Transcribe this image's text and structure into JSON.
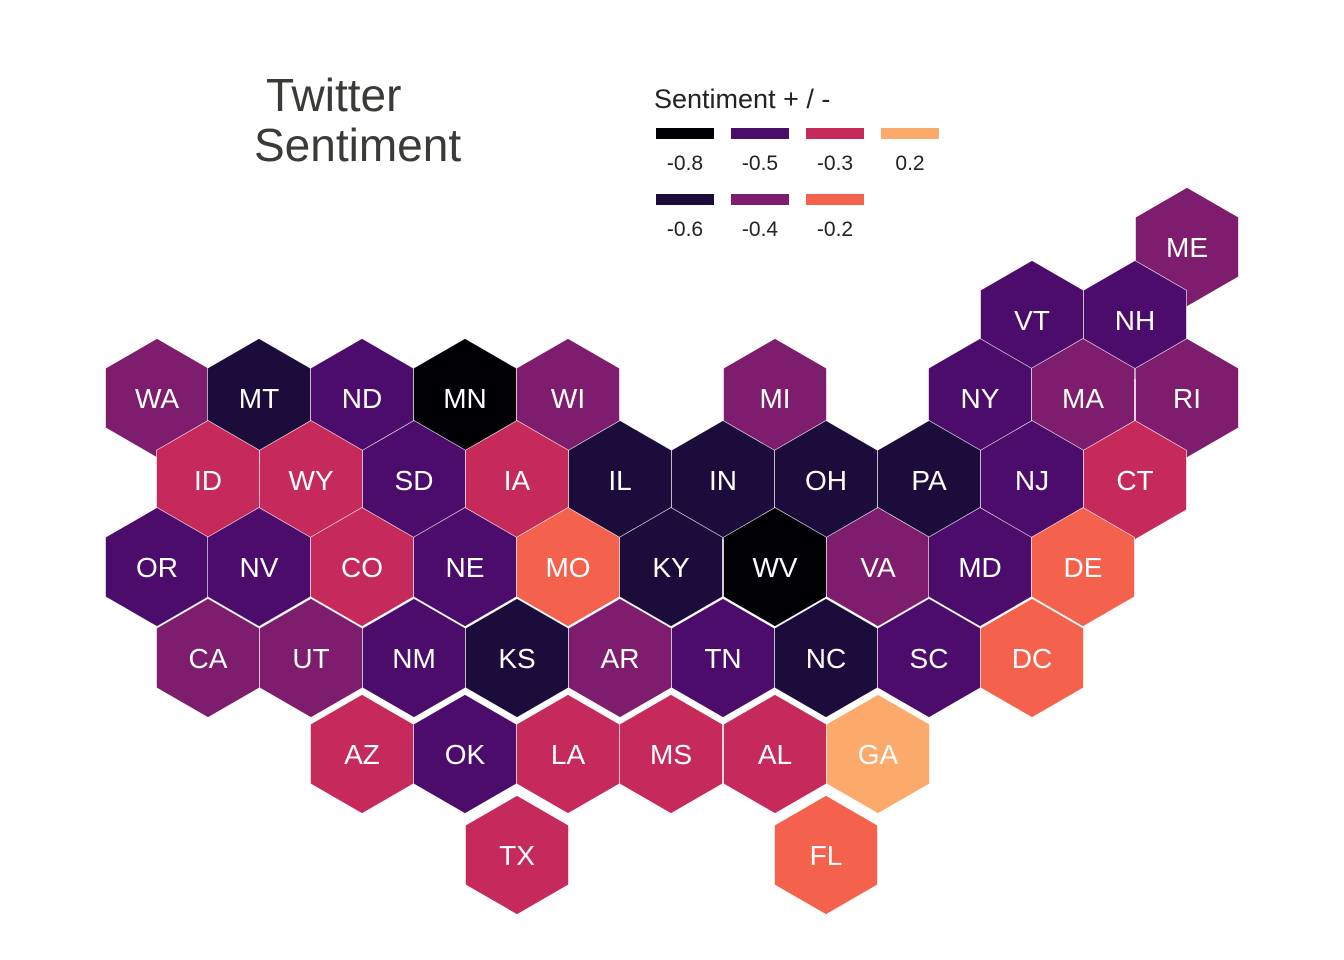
{
  "title": {
    "line1": "Twitter",
    "line2": "Sentiment"
  },
  "legend": {
    "title": "Sentiment + / -",
    "items": [
      {
        "label": "-0.8",
        "color": "#000004"
      },
      {
        "label": "-0.6",
        "color": "#1c0c3b"
      },
      {
        "label": "-0.5",
        "color": "#4b0c6b"
      },
      {
        "label": "-0.4",
        "color": "#7e1c6e"
      },
      {
        "label": "-0.3",
        "color": "#c52a5a"
      },
      {
        "label": "-0.2",
        "color": "#f4624e"
      },
      {
        "label": "0.2",
        "color": "#fca96c"
      }
    ]
  },
  "chart_data": {
    "type": "hex-cartogram",
    "title": "Twitter Sentiment",
    "legend_title": "Sentiment + / -",
    "states": [
      {
        "abbr": "ME",
        "value": -0.4
      },
      {
        "abbr": "VT",
        "value": -0.5
      },
      {
        "abbr": "NH",
        "value": -0.5
      },
      {
        "abbr": "WA",
        "value": -0.4
      },
      {
        "abbr": "MT",
        "value": -0.6
      },
      {
        "abbr": "ND",
        "value": -0.5
      },
      {
        "abbr": "MN",
        "value": -0.8
      },
      {
        "abbr": "WI",
        "value": -0.4
      },
      {
        "abbr": "MI",
        "value": -0.4
      },
      {
        "abbr": "NY",
        "value": -0.5
      },
      {
        "abbr": "MA",
        "value": -0.4
      },
      {
        "abbr": "RI",
        "value": -0.4
      },
      {
        "abbr": "ID",
        "value": -0.3
      },
      {
        "abbr": "WY",
        "value": -0.3
      },
      {
        "abbr": "SD",
        "value": -0.5
      },
      {
        "abbr": "IA",
        "value": -0.3
      },
      {
        "abbr": "IL",
        "value": -0.6
      },
      {
        "abbr": "IN",
        "value": -0.6
      },
      {
        "abbr": "OH",
        "value": -0.6
      },
      {
        "abbr": "PA",
        "value": -0.6
      },
      {
        "abbr": "NJ",
        "value": -0.5
      },
      {
        "abbr": "CT",
        "value": -0.3
      },
      {
        "abbr": "OR",
        "value": -0.5
      },
      {
        "abbr": "NV",
        "value": -0.5
      },
      {
        "abbr": "CO",
        "value": -0.3
      },
      {
        "abbr": "NE",
        "value": -0.5
      },
      {
        "abbr": "MO",
        "value": -0.2
      },
      {
        "abbr": "KY",
        "value": -0.6
      },
      {
        "abbr": "WV",
        "value": -0.8
      },
      {
        "abbr": "VA",
        "value": -0.4
      },
      {
        "abbr": "MD",
        "value": -0.5
      },
      {
        "abbr": "DE",
        "value": -0.2
      },
      {
        "abbr": "CA",
        "value": -0.4
      },
      {
        "abbr": "UT",
        "value": -0.4
      },
      {
        "abbr": "NM",
        "value": -0.5
      },
      {
        "abbr": "KS",
        "value": -0.6
      },
      {
        "abbr": "AR",
        "value": -0.4
      },
      {
        "abbr": "TN",
        "value": -0.5
      },
      {
        "abbr": "NC",
        "value": -0.6
      },
      {
        "abbr": "SC",
        "value": -0.5
      },
      {
        "abbr": "DC",
        "value": -0.2
      },
      {
        "abbr": "AZ",
        "value": -0.3
      },
      {
        "abbr": "OK",
        "value": -0.5
      },
      {
        "abbr": "LA",
        "value": -0.3
      },
      {
        "abbr": "MS",
        "value": -0.3
      },
      {
        "abbr": "AL",
        "value": -0.3
      },
      {
        "abbr": "GA",
        "value": 0.2
      },
      {
        "abbr": "TX",
        "value": -0.3
      },
      {
        "abbr": "FL",
        "value": -0.2
      }
    ]
  }
}
